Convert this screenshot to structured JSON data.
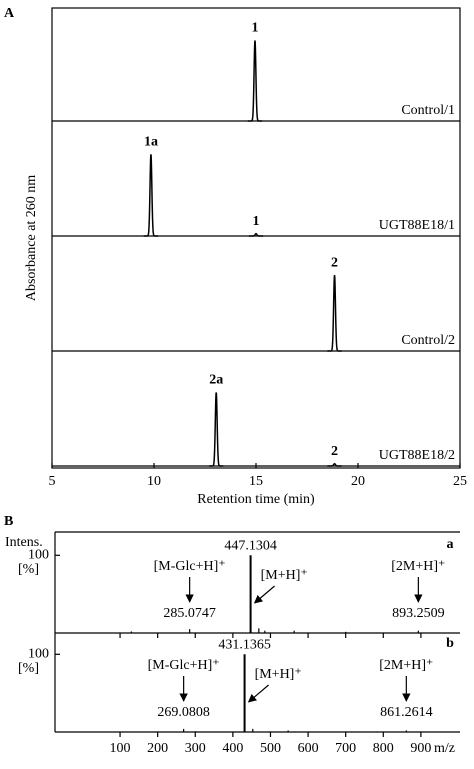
{
  "chart_data": [
    {
      "type": "line",
      "panel": "A",
      "xlabel": "Retention time (min)",
      "ylabel": "Absorbance at 260 nm",
      "xlim": [
        5,
        25
      ],
      "xticks": [
        5,
        10,
        15,
        20,
        25
      ],
      "ylim": [
        0,
        100
      ],
      "color": "#000000",
      "traces": [
        {
          "name": "Control/1",
          "peaks": [
            {
              "x": 14.95,
              "height": 70,
              "label": "1"
            }
          ]
        },
        {
          "name": "UGT88E18/1",
          "peaks": [
            {
              "x": 9.85,
              "height": 71,
              "label": "1a"
            },
            {
              "x": 15.0,
              "height": 2,
              "label": "1"
            }
          ]
        },
        {
          "name": "Control/2",
          "peaks": [
            {
              "x": 18.85,
              "height": 66,
              "label": "2"
            }
          ]
        },
        {
          "name": "UGT88E18/2",
          "peaks": [
            {
              "x": 13.05,
              "height": 64,
              "label": "2a"
            },
            {
              "x": 18.85,
              "height": 2,
              "label": "2"
            }
          ]
        }
      ]
    },
    {
      "type": "stick",
      "panel": "B",
      "ylabel": "Intens.",
      "xlabel": "m/z",
      "xlim": [
        -73,
        1004
      ],
      "xticks": [
        100,
        200,
        300,
        400,
        500,
        600,
        700,
        800,
        900
      ],
      "color": "#000000",
      "spectra": [
        {
          "label": "a",
          "ylabel": "[%]",
          "ylim": [
            0,
            130
          ],
          "yticks": [
            100
          ],
          "labeled_peaks": [
            {
              "x": 285.0747,
              "y": 5,
              "ion": "[M-Glc+H]⁺"
            },
            {
              "x": 447.1304,
              "y": 100,
              "ion": "[M+H]⁺"
            },
            {
              "x": 893.2509,
              "y": 3,
              "ion": "[2M+H]⁺"
            }
          ],
          "peaks": [
            {
              "x": 130,
              "y": 2
            },
            {
              "x": 469,
              "y": 6
            },
            {
              "x": 485,
              "y": 3
            },
            {
              "x": 563,
              "y": 3
            },
            {
              "x": 700,
              "y": 1.5
            }
          ]
        },
        {
          "label": "b",
          "ylabel": "[%]",
          "ylim": [
            0,
            130
          ],
          "yticks": [
            100
          ],
          "labeled_peaks": [
            {
              "x": 269.0808,
              "y": 4,
              "ion": "[M-Glc+H]⁺"
            },
            {
              "x": 431.1365,
              "y": 100,
              "ion": "[M+H]⁺"
            },
            {
              "x": 861.2614,
              "y": 2,
              "ion": "[2M+H]⁺"
            }
          ],
          "peaks": [
            {
              "x": 300,
              "y": 1
            },
            {
              "x": 453,
              "y": 4
            },
            {
              "x": 547,
              "y": 2
            }
          ]
        }
      ]
    }
  ]
}
